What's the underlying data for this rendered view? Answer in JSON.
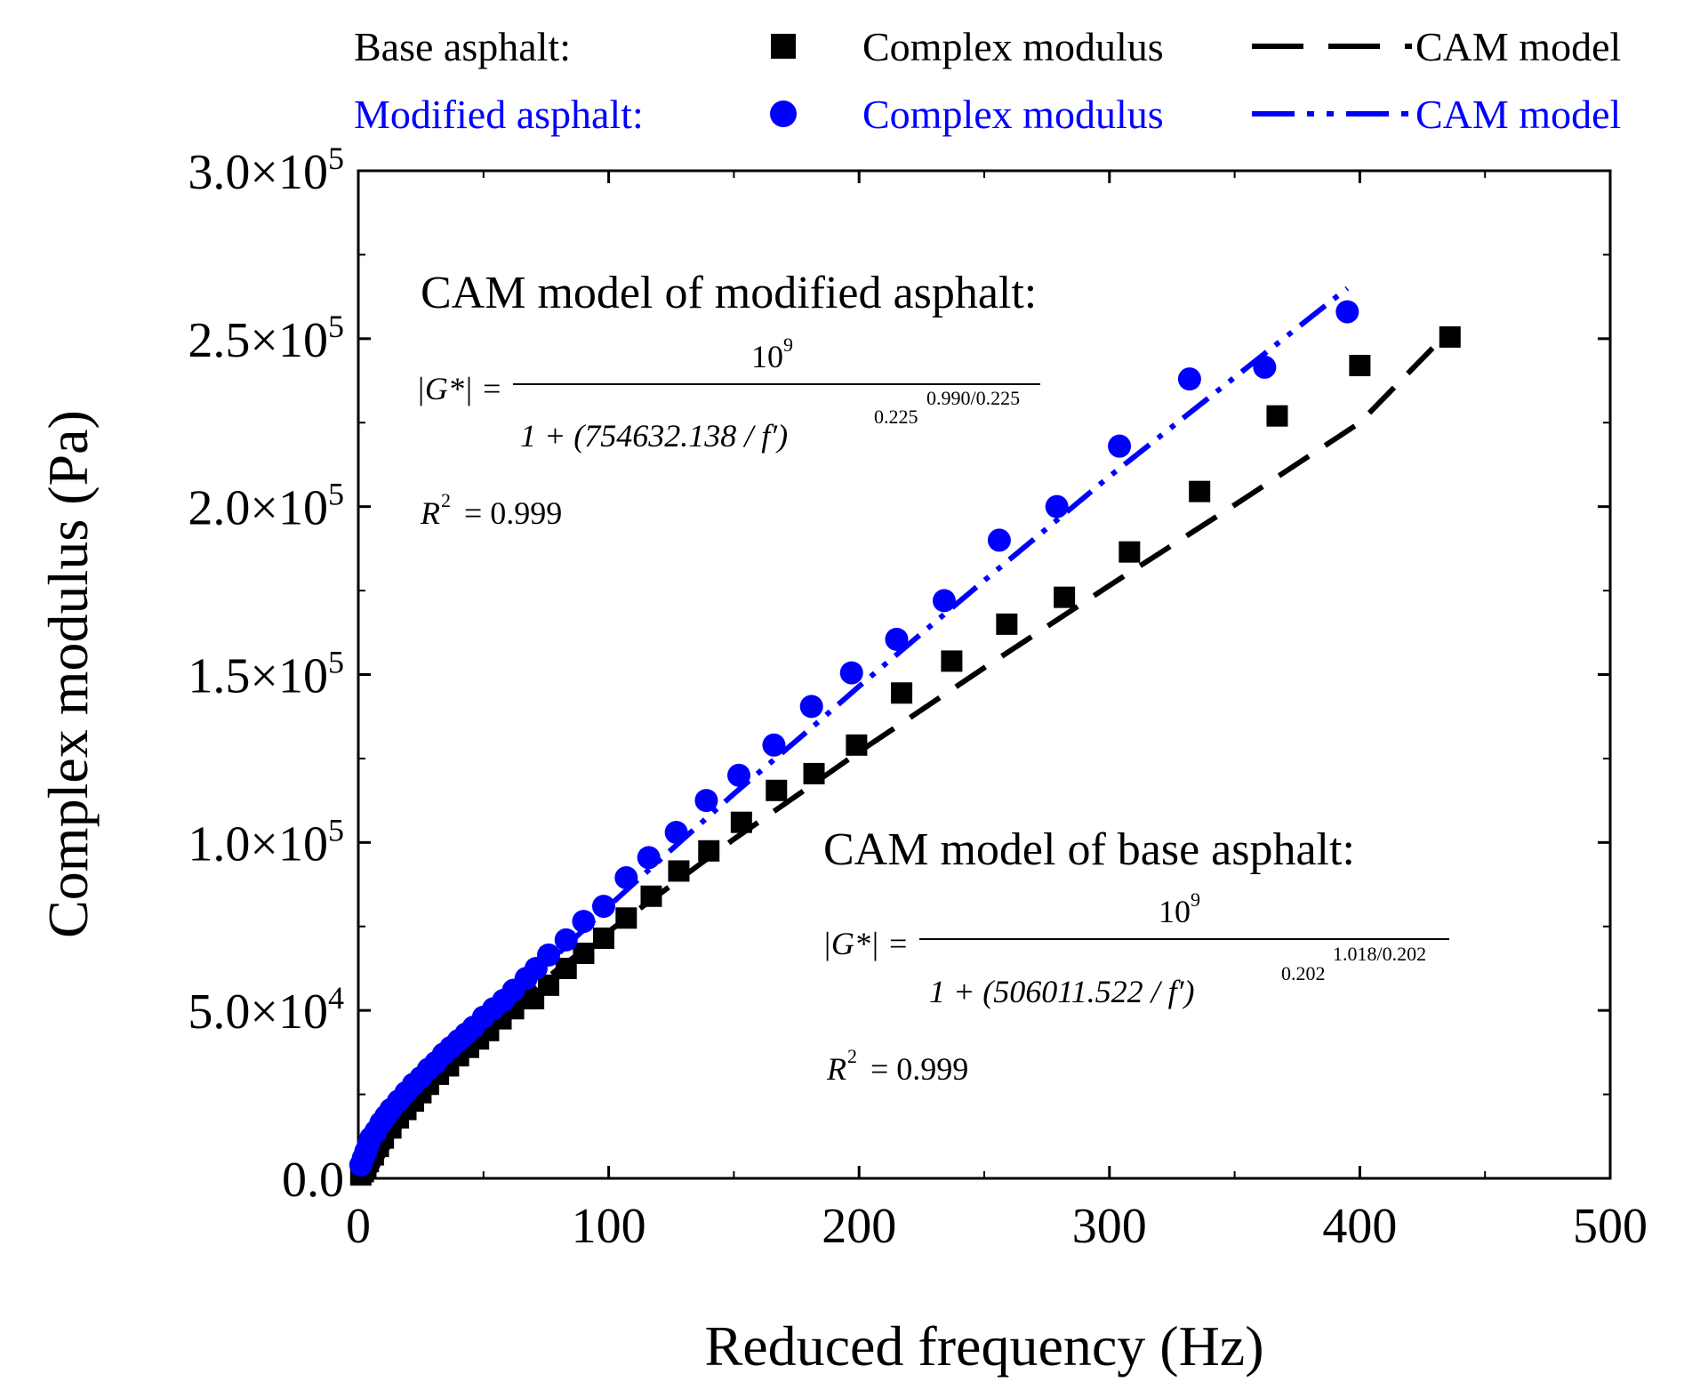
{
  "colors": {
    "base": "#000000",
    "modified": "#0000ff"
  },
  "legend": {
    "base_label": "Base asphalt:",
    "modified_label": "Modified asphalt:",
    "marker_label": "Complex modulus",
    "model_label": "CAM model"
  },
  "annotations": {
    "modified": {
      "title": "CAM model of modified asphalt:",
      "lhs": "|G*| =",
      "numerator": "10",
      "numerator_exp": "9",
      "denominator_text": "1 + (754632.138 / f′)",
      "inner_exp": "0.225",
      "outer_exp": "0.990/0.225",
      "r2_label": "R",
      "r2_exp": "2",
      "r2_value": "= 0.999"
    },
    "base": {
      "title": "CAM model of base asphalt:",
      "lhs": "|G*| =",
      "numerator": "10",
      "numerator_exp": "9",
      "denominator_text": "1 + (506011.522 / f′)",
      "inner_exp": "0.202",
      "outer_exp": "1.018/0.202",
      "r2_label": "R",
      "r2_exp": "2",
      "r2_value": "= 0.999"
    }
  },
  "chart_data": {
    "type": "scatter",
    "xlabel": "Reduced frequency (Hz)",
    "ylabel": "Complex modulus (Pa)",
    "xlim": [
      0,
      500
    ],
    "ylim": [
      0,
      300000
    ],
    "x_ticks": [
      0,
      100,
      200,
      300,
      400,
      500
    ],
    "x_tick_labels": [
      "0",
      "100",
      "200",
      "300",
      "400",
      "500"
    ],
    "y_ticks": [
      0,
      50000,
      100000,
      150000,
      200000,
      250000,
      300000
    ],
    "y_tick_labels": [
      {
        "mantissa": "0.0",
        "exp": ""
      },
      {
        "mantissa": "5.0×10",
        "exp": "4"
      },
      {
        "mantissa": "1.0×10",
        "exp": "5"
      },
      {
        "mantissa": "1.5×10",
        "exp": "5"
      },
      {
        "mantissa": "2.0×10",
        "exp": "5"
      },
      {
        "mantissa": "2.5×10",
        "exp": "5"
      },
      {
        "mantissa": "3.0×10",
        "exp": "5"
      }
    ],
    "grid": false,
    "legend_position": "top",
    "series": [
      {
        "name": "Base asphalt: Complex modulus",
        "marker": "square",
        "color": "#000000",
        "x": [
          1,
          2,
          3,
          4,
          6,
          8,
          10,
          13,
          16,
          19,
          22,
          25,
          28,
          32,
          36,
          40,
          44,
          48,
          52,
          57,
          62,
          67,
          70,
          76,
          83,
          90,
          98,
          107,
          117,
          128,
          140,
          153,
          167,
          182,
          199,
          217,
          237,
          259,
          282,
          308,
          336,
          367,
          400,
          436
        ],
        "y": [
          1000,
          2000,
          3500,
          5000,
          7000,
          9500,
          12000,
          15000,
          18000,
          20500,
          23000,
          25500,
          28000,
          31000,
          33500,
          36500,
          39000,
          41500,
          44000,
          47500,
          50500,
          53500,
          53500,
          57500,
          62500,
          67000,
          71500,
          77500,
          84000,
          91500,
          97500,
          106000,
          115500,
          120500,
          129000,
          144500,
          154000,
          165000,
          173000,
          186500,
          204500,
          227000,
          242000,
          250500
        ]
      },
      {
        "name": "Base asphalt: CAM model",
        "line": "dash",
        "color": "#000000",
        "x": [
          5,
          10,
          20,
          30,
          40,
          50,
          60,
          80,
          100,
          120,
          150,
          180,
          200,
          250,
          300,
          350,
          400,
          436
        ],
        "y": [
          0,
          7000,
          19500,
          29500,
          37000,
          44000,
          50500,
          62500,
          73500,
          84500,
          101000,
          116500,
          127000,
          152000,
          176500,
          200500,
          225000,
          252500
        ]
      },
      {
        "name": "Modified asphalt: Complex modulus",
        "marker": "circle",
        "color": "#0000ff",
        "x": [
          1,
          2,
          3,
          4,
          5,
          7,
          9,
          11,
          13,
          16,
          19,
          22,
          25,
          28,
          31,
          34,
          37,
          40,
          43,
          46,
          50,
          54,
          58,
          62,
          67,
          71,
          76,
          83,
          90,
          98,
          107,
          116,
          127,
          139,
          152,
          166,
          181,
          197,
          215,
          234,
          256,
          279,
          304,
          332,
          362,
          395
        ],
        "y": [
          4000,
          6000,
          8000,
          10000,
          12000,
          14000,
          16500,
          18500,
          20500,
          23000,
          25500,
          28000,
          30000,
          32500,
          34500,
          37000,
          39000,
          41000,
          43000,
          45000,
          48000,
          50500,
          53000,
          56000,
          59500,
          62500,
          66500,
          71000,
          76500,
          81000,
          89500,
          95500,
          103000,
          112500,
          120000,
          129000,
          140500,
          150500,
          160500,
          172000,
          190000,
          200000,
          218000,
          238000,
          241500,
          258000
        ]
      },
      {
        "name": "Modified asphalt: CAM model",
        "line": "dash-dot-dot",
        "color": "#0000ff",
        "x": [
          1,
          5,
          10,
          20,
          30,
          40,
          50,
          60,
          80,
          100,
          120,
          150,
          180,
          200,
          250,
          300,
          350,
          395
        ],
        "y": [
          1500,
          8000,
          13500,
          23000,
          31500,
          39500,
          46500,
          53500,
          67000,
          81000,
          94500,
          114500,
          133500,
          146500,
          178000,
          209000,
          238500,
          265000
        ]
      }
    ]
  }
}
